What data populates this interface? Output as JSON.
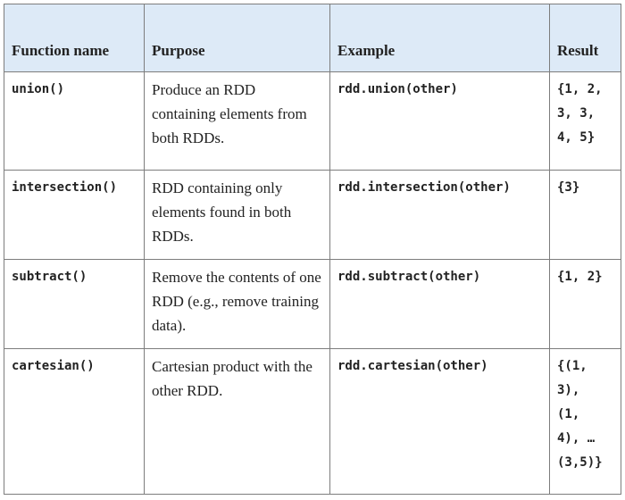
{
  "headers": {
    "function_name": "Function name",
    "purpose": "Purpose",
    "example": "Example",
    "result": "Result"
  },
  "rows": [
    {
      "function": "union()",
      "purpose": "Produce an RDD containing elements from both RDDs.",
      "example": "rdd.union(other)",
      "result": "{1, 2,\n3, 3,\n4, 5}"
    },
    {
      "function": "intersection()",
      "purpose": "RDD containing only elements found in both RDDs.",
      "example": "rdd.intersection(other)",
      "result": "{3}"
    },
    {
      "function": "subtract()",
      "purpose": "Remove the contents of one RDD (e.g., remove training data).",
      "example": "rdd.subtract(other)",
      "result": "{1, 2}"
    },
    {
      "function": "cartesian()",
      "purpose": "Cartesian product with the other RDD.",
      "example": "rdd.cartesian(other)",
      "result": "{(1,\n3),\n(1,\n4), …\n(3,5)}"
    }
  ]
}
